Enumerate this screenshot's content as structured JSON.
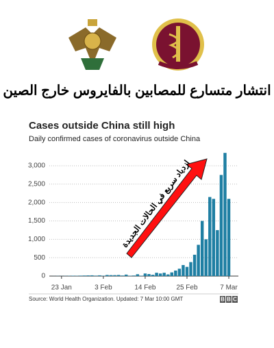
{
  "header": {
    "title": "انتشار متسارع للمصابين بالفايروس خارج الصين"
  },
  "chart_data": {
    "type": "bar",
    "title": "Cases outside China still high",
    "subtitle": "Daily confirmed cases of coronavirus outside China",
    "annotation": "ازدياد سريع في الحالات الجديدة",
    "source": "Source: World Health Organization. Updated: 7 Mar 10:00 GMT",
    "logo": [
      "B",
      "B",
      "C"
    ],
    "color": "#1f7fa3",
    "grid": true,
    "categories": [
      null,
      null,
      null,
      "23 Jan",
      null,
      null,
      null,
      null,
      null,
      null,
      null,
      null,
      null,
      null,
      "3 Feb",
      null,
      null,
      null,
      null,
      null,
      null,
      null,
      null,
      null,
      null,
      "14 Feb",
      null,
      null,
      null,
      null,
      null,
      null,
      null,
      null,
      null,
      null,
      "25 Feb",
      null,
      null,
      null,
      null,
      null,
      null,
      null,
      null,
      null,
      null,
      "7 Mar"
    ],
    "values": [
      0,
      2,
      4,
      3,
      5,
      7,
      10,
      8,
      12,
      15,
      18,
      20,
      12,
      20,
      10,
      30,
      25,
      25,
      30,
      15,
      40,
      10,
      15,
      50,
      10,
      70,
      55,
      35,
      90,
      70,
      90,
      45,
      100,
      150,
      200,
      300,
      250,
      380,
      580,
      850,
      1500,
      1000,
      2150,
      2100,
      1250,
      2750,
      3350,
      2100
    ],
    "ylim": [
      0,
      3400
    ],
    "yticks": [
      0,
      500,
      {
        "value": 1000,
        "label": "1,000"
      },
      {
        "value": 1500,
        "label": "1,500"
      },
      {
        "value": 2000,
        "label": "2,000"
      },
      {
        "value": 2500,
        "label": "2,500"
      },
      {
        "value": 3000,
        "label": "3,000"
      }
    ]
  }
}
